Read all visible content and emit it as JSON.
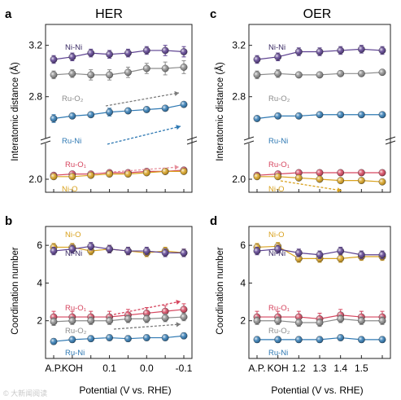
{
  "panels": [
    {
      "id": "a",
      "letter": "a",
      "title": "HER",
      "ylabel": "Interatomic distance (Å)",
      "yticks": [
        "2.0",
        "2.8",
        "3.2"
      ],
      "xticks": [],
      "xlabel": "",
      "labels": [
        {
          "t": "Ni-Ni",
          "c": "#3a2a64"
        },
        {
          "t": "Ru-O₂",
          "c": "#8c8c8c"
        },
        {
          "t": "Ru-Ni",
          "c": "#2f79b3"
        },
        {
          "t": "Ru-O₁",
          "c": "#d6465f"
        },
        {
          "t": "Ni-O",
          "c": "#d9a21f"
        }
      ]
    },
    {
      "id": "b",
      "letter": "b",
      "title": "",
      "ylabel": "Coordination number",
      "yticks": [
        "2",
        "4",
        "6"
      ],
      "xticks": [
        "A.P.",
        "KOH",
        "0.1",
        "0.0",
        "-0.1"
      ],
      "xlabel": "Potential (V vs. RHE)",
      "labels": [
        {
          "t": "Ni-O",
          "c": "#d9a21f"
        },
        {
          "t": "Ni-Ni",
          "c": "#3a2a64"
        },
        {
          "t": "Ru-O₁",
          "c": "#d6465f"
        },
        {
          "t": "Ru-O₂",
          "c": "#8c8c8c"
        },
        {
          "t": "Ru-Ni",
          "c": "#2f79b3"
        }
      ]
    },
    {
      "id": "c",
      "letter": "c",
      "title": "OER",
      "ylabel": "Interatomic distance (Å)",
      "yticks": [
        "2.0",
        "2.8",
        "3.2"
      ],
      "xticks": [],
      "xlabel": "",
      "labels": [
        {
          "t": "Ni-Ni",
          "c": "#3a2a64"
        },
        {
          "t": "Ru-O₂",
          "c": "#8c8c8c"
        },
        {
          "t": "Ru-Ni",
          "c": "#2f79b3"
        },
        {
          "t": "Ru-O₁",
          "c": "#d6465f"
        },
        {
          "t": "Ni-O",
          "c": "#d9a21f"
        }
      ]
    },
    {
      "id": "d",
      "letter": "d",
      "title": "",
      "ylabel": "Coordination number",
      "yticks": [
        "2",
        "4",
        "6"
      ],
      "xticks": [
        "A.P.",
        "KOH",
        "1.2",
        "1.3",
        "1.4",
        "1.5"
      ],
      "xlabel": "Potential (V vs. RHE)",
      "labels": [
        {
          "t": "Ni-O",
          "c": "#d9a21f"
        },
        {
          "t": "Ni-Ni",
          "c": "#3a2a64"
        },
        {
          "t": "Ru-O₁",
          "c": "#d6465f"
        },
        {
          "t": "Ru-O₂",
          "c": "#8c8c8c"
        },
        {
          "t": "Ru-Ni",
          "c": "#2f79b3"
        }
      ]
    }
  ],
  "watermark": "© 大新闻阅读",
  "chart_data": [
    {
      "panel": "a",
      "type": "line",
      "title": "HER",
      "ylabel": "Interatomic distance (Å)",
      "axis_break": true,
      "x": [
        0,
        1,
        2,
        3,
        4,
        5,
        6,
        7
      ],
      "series": [
        {
          "name": "Ni-Ni",
          "color": "#5b3f8f",
          "values": [
            3.09,
            3.11,
            3.14,
            3.13,
            3.14,
            3.16,
            3.16,
            3.15
          ],
          "err": [
            0.03,
            0.03,
            0.03,
            0.03,
            0.03,
            0.03,
            0.04,
            0.04
          ]
        },
        {
          "name": "Ru-O₂",
          "color": "#8c8c8c",
          "values": [
            2.97,
            2.98,
            2.97,
            2.97,
            2.99,
            3.02,
            3.02,
            3.03
          ],
          "err": [
            0.03,
            0.03,
            0.04,
            0.04,
            0.04,
            0.04,
            0.05,
            0.05
          ]
        },
        {
          "name": "Ru-Ni",
          "color": "#2f79b3",
          "values": [
            2.63,
            2.65,
            2.66,
            2.68,
            2.69,
            2.7,
            2.71,
            2.74
          ],
          "err": [
            0.03,
            0.02,
            0.02,
            0.03,
            0.02,
            0.02,
            0.02,
            0.02
          ]
        },
        {
          "name": "Ru-O₁",
          "color": "#d6465f",
          "values": [
            2.03,
            2.04,
            2.04,
            2.05,
            2.05,
            2.06,
            2.06,
            2.07
          ],
          "err": [
            0.02,
            0.02,
            0.02,
            0.02,
            0.02,
            0.02,
            0.02,
            0.02
          ]
        },
        {
          "name": "Ni-O",
          "color": "#d9a21f",
          "values": [
            2.02,
            2.02,
            2.03,
            2.04,
            2.04,
            2.05,
            2.06,
            2.06
          ],
          "err": [
            0.01,
            0.01,
            0.01,
            0.01,
            0.01,
            0.01,
            0.01,
            0.01
          ]
        }
      ]
    },
    {
      "panel": "b",
      "type": "line",
      "ylabel": "Coordination number",
      "xlabel": "Potential (V vs. RHE)",
      "ylim": [
        0,
        7
      ],
      "x": [
        0,
        1,
        2,
        3,
        4,
        5,
        6,
        7
      ],
      "series": [
        {
          "name": "Ni-O",
          "color": "#d9a21f",
          "values": [
            5.9,
            5.9,
            5.7,
            5.8,
            5.7,
            5.6,
            5.7,
            5.6
          ],
          "err": [
            0.2,
            0.2,
            0.2,
            0.2,
            0.2,
            0.2,
            0.2,
            0.2
          ]
        },
        {
          "name": "Ni-Ni",
          "color": "#5b3f8f",
          "values": [
            5.7,
            5.8,
            5.95,
            5.8,
            5.7,
            5.7,
            5.6,
            5.6
          ],
          "err": [
            0.2,
            0.2,
            0.2,
            0.2,
            0.2,
            0.2,
            0.2,
            0.2
          ]
        },
        {
          "name": "Ru-O₁",
          "color": "#d6465f",
          "values": [
            2.2,
            2.2,
            2.2,
            2.2,
            2.3,
            2.4,
            2.5,
            2.6
          ],
          "err": [
            0.3,
            0.3,
            0.3,
            0.3,
            0.3,
            0.3,
            0.3,
            0.3
          ]
        },
        {
          "name": "Ru-O₂",
          "color": "#8c8c8c",
          "values": [
            1.95,
            2.0,
            2.0,
            2.0,
            2.1,
            2.1,
            2.15,
            2.2
          ],
          "err": [
            0.2,
            0.2,
            0.2,
            0.2,
            0.2,
            0.2,
            0.2,
            0.2
          ]
        },
        {
          "name": "Ru-Ni",
          "color": "#2f79b3",
          "values": [
            0.9,
            1.0,
            1.05,
            1.1,
            1.05,
            1.1,
            1.1,
            1.2
          ],
          "err": [
            0.15,
            0.15,
            0.15,
            0.15,
            0.15,
            0.15,
            0.15,
            0.15
          ]
        }
      ]
    },
    {
      "panel": "c",
      "type": "line",
      "title": "OER",
      "ylabel": "Interatomic distance (Å)",
      "axis_break": true,
      "x": [
        0,
        1,
        2,
        3,
        4,
        5,
        6
      ],
      "series": [
        {
          "name": "Ni-Ni",
          "color": "#5b3f8f",
          "values": [
            3.09,
            3.11,
            3.15,
            3.15,
            3.16,
            3.17,
            3.16
          ],
          "err": [
            0.03,
            0.03,
            0.03,
            0.03,
            0.03,
            0.03,
            0.03
          ]
        },
        {
          "name": "Ru-O₂",
          "color": "#8c8c8c",
          "values": [
            2.97,
            2.98,
            2.97,
            2.97,
            2.98,
            2.98,
            2.99
          ],
          "err": [
            0.03,
            0.03,
            0.02,
            0.02,
            0.02,
            0.02,
            0.02
          ]
        },
        {
          "name": "Ru-Ni",
          "color": "#2f79b3",
          "values": [
            2.63,
            2.65,
            2.65,
            2.66,
            2.66,
            2.66,
            2.66
          ],
          "err": [
            0.02,
            0.02,
            0.02,
            0.02,
            0.02,
            0.02,
            0.02
          ]
        },
        {
          "name": "Ru-O₁",
          "color": "#d6465f",
          "values": [
            2.03,
            2.04,
            2.05,
            2.05,
            2.05,
            2.05,
            2.05
          ],
          "err": [
            0.02,
            0.02,
            0.02,
            0.02,
            0.02,
            0.02,
            0.02
          ]
        },
        {
          "name": "Ni-O",
          "color": "#d9a21f",
          "values": [
            2.02,
            2.02,
            2.01,
            2.0,
            1.99,
            1.99,
            1.98
          ],
          "err": [
            0.01,
            0.01,
            0.01,
            0.01,
            0.01,
            0.01,
            0.01
          ]
        }
      ]
    },
    {
      "panel": "d",
      "type": "line",
      "ylabel": "Coordination number",
      "xlabel": "Potential (V vs. RHE)",
      "ylim": [
        0,
        7
      ],
      "x": [
        0,
        1,
        2,
        3,
        4,
        5,
        6
      ],
      "series": [
        {
          "name": "Ni-O",
          "color": "#d9a21f",
          "values": [
            5.9,
            5.95,
            5.3,
            5.3,
            5.3,
            5.4,
            5.4
          ],
          "err": [
            0.2,
            0.2,
            0.2,
            0.2,
            0.2,
            0.2,
            0.2
          ]
        },
        {
          "name": "Ni-Ni",
          "color": "#5b3f8f",
          "values": [
            5.7,
            5.8,
            5.6,
            5.5,
            5.7,
            5.5,
            5.5
          ],
          "err": [
            0.2,
            0.2,
            0.2,
            0.2,
            0.2,
            0.2,
            0.2
          ]
        },
        {
          "name": "Ru-O₁",
          "color": "#d6465f",
          "values": [
            2.2,
            2.2,
            2.2,
            2.1,
            2.3,
            2.2,
            2.2
          ],
          "err": [
            0.3,
            0.3,
            0.3,
            0.3,
            0.3,
            0.3,
            0.3
          ]
        },
        {
          "name": "Ru-O₂",
          "color": "#8c8c8c",
          "values": [
            2.0,
            2.0,
            1.9,
            1.9,
            2.1,
            2.0,
            2.0
          ],
          "err": [
            0.2,
            0.2,
            0.2,
            0.2,
            0.2,
            0.2,
            0.2
          ]
        },
        {
          "name": "Ru-Ni",
          "color": "#2f79b3",
          "values": [
            1.0,
            1.0,
            1.0,
            1.0,
            1.1,
            1.0,
            1.0
          ],
          "err": [
            0.15,
            0.15,
            0.15,
            0.15,
            0.15,
            0.15,
            0.15
          ]
        }
      ]
    }
  ]
}
